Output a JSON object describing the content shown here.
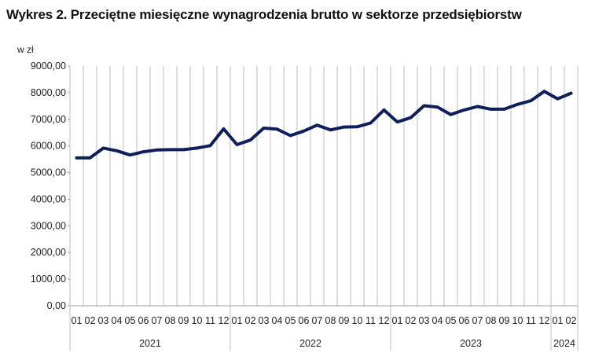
{
  "chart_data": {
    "type": "line",
    "title": "Wykres 2. Przeciętne miesięczne wynagrodzenia brutto w sektorze przedsiębiorstw",
    "ylabel": "w zł",
    "xlabel": "",
    "ylim": [
      0,
      9000
    ],
    "y_ticks": [
      "0,00",
      "1000,00",
      "2000,00",
      "3000,00",
      "4000,00",
      "5000,00",
      "6000,00",
      "7000,00",
      "8000,00",
      "9000,00"
    ],
    "categories": [
      "01",
      "02",
      "03",
      "04",
      "05",
      "06",
      "07",
      "08",
      "09",
      "10",
      "11",
      "12",
      "01",
      "02",
      "03",
      "04",
      "05",
      "06",
      "07",
      "08",
      "09",
      "10",
      "11",
      "12",
      "01",
      "02",
      "03",
      "04",
      "05",
      "06",
      "07",
      "08",
      "09",
      "10",
      "11",
      "12",
      "01",
      "02"
    ],
    "year_groups": [
      {
        "label": "2021",
        "count": 12
      },
      {
        "label": "2022",
        "count": 12
      },
      {
        "label": "2023",
        "count": 12
      },
      {
        "label": "2024",
        "count": 2
      }
    ],
    "grid": "vertical",
    "legend": "none",
    "series": [
      {
        "color": "#0f1f5c",
        "values": [
          5550,
          5550,
          5920,
          5820,
          5660,
          5780,
          5850,
          5860,
          5860,
          5920,
          6010,
          6640,
          6050,
          6220,
          6670,
          6630,
          6390,
          6560,
          6780,
          6600,
          6710,
          6720,
          6860,
          7350,
          6900,
          7060,
          7510,
          7460,
          7180,
          7350,
          7480,
          7380,
          7380,
          7560,
          7700,
          8050,
          7770,
          7980
        ]
      }
    ]
  }
}
